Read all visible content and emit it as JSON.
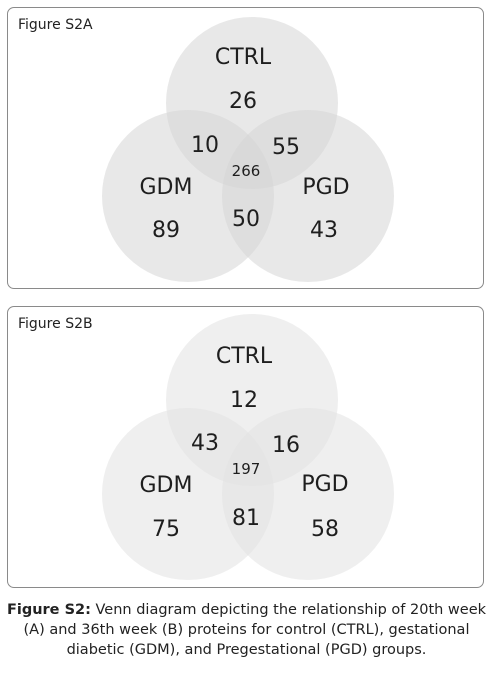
{
  "panels": [
    {
      "label": "Figure S2A",
      "sets": [
        "CTRL",
        "GDM",
        "PGD"
      ],
      "regions": {
        "ctrl_only": "26",
        "ctrl_gdm": "10",
        "ctrl_pgd": "55",
        "all": "266",
        "gdm_only": "89",
        "gdm_pgd": "50",
        "pgd_only": "43"
      },
      "fill_color": "#d5d5d5"
    },
    {
      "label": "Figure S2B",
      "sets": [
        "CTRL",
        "GDM",
        "PGD"
      ],
      "regions": {
        "ctrl_only": "12",
        "ctrl_gdm": "43",
        "ctrl_pgd": "16",
        "all": "197",
        "gdm_only": "75",
        "gdm_pgd": "81",
        "pgd_only": "58"
      },
      "fill_color": "#e2e2e2"
    }
  ],
  "caption": {
    "lead": "Figure S2:",
    "text": " Venn diagram depicting the relationship of 20th week (A) and 36th week (B) proteins for control (CTRL), gestational diabetic (GDM), and Pregestational (PGD) groups."
  }
}
